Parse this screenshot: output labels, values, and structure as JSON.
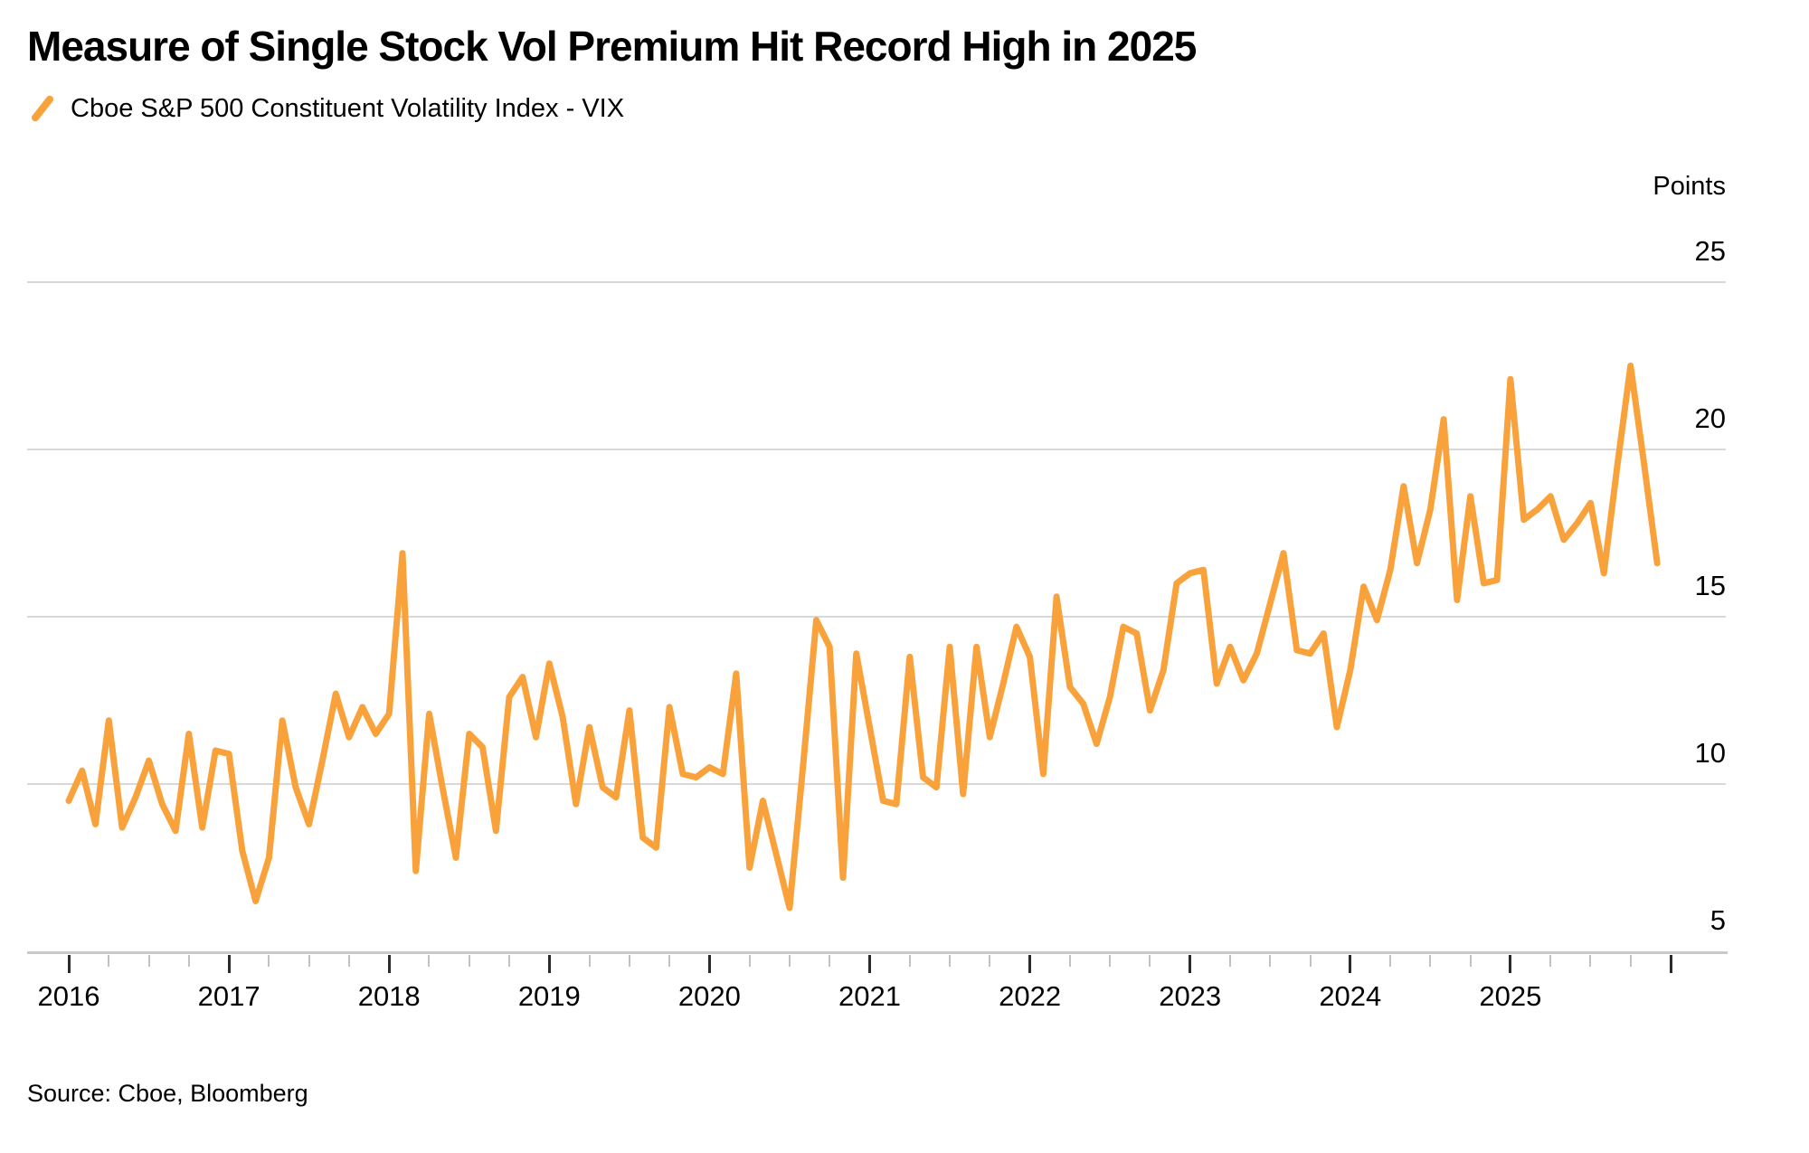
{
  "header": {
    "title": "Measure of Single Stock Vol Premium Hit Record High in 2025",
    "legend": {
      "icon": "orange-slash",
      "label": "Cboe S&P 500 Constituent Volatility Index - VIX"
    }
  },
  "axes": {
    "y_unit": "Points",
    "y_ticks": [
      25,
      20,
      15,
      10,
      5
    ],
    "x_ticks": [
      "2016",
      "2017",
      "2018",
      "2019",
      "2020",
      "2021",
      "2022",
      "2023",
      "2024",
      "2025"
    ]
  },
  "footer": {
    "source": "Source: Cboe, Bloomberg"
  },
  "colors": {
    "line": "#F9A23C",
    "grid": "#D8D8D8",
    "axis": "#C9C9C9",
    "tick_major": "#2B2B2B",
    "tick_minor": "#C2C2C2",
    "text": "#000000",
    "background": "#FFFFFF"
  },
  "chart_data": {
    "type": "line",
    "title": "Measure of Single Stock Vol Premium Hit Record High in 2025",
    "ylabel": "Points",
    "ylim": [
      5,
      25
    ],
    "grid": "horizontal",
    "legend_position": "top-left",
    "x_start": "2016-01",
    "x_end": "2025-12",
    "frequency": "monthly",
    "x_axis_years": [
      2016,
      2017,
      2018,
      2019,
      2020,
      2021,
      2022,
      2023,
      2024,
      2025
    ],
    "minor_ticks_per_year": 4,
    "series": [
      {
        "name": "Cboe S&P 500 Constituent Volatility Index - VIX",
        "color": "#F9A23C",
        "values": [
          9.5,
          10.4,
          8.8,
          11.9,
          8.7,
          9.6,
          10.7,
          9.4,
          8.6,
          11.5,
          8.7,
          11.0,
          10.9,
          8.0,
          6.5,
          7.8,
          11.9,
          9.9,
          8.8,
          10.7,
          12.7,
          11.4,
          12.3,
          11.5,
          12.1,
          16.9,
          7.4,
          12.1,
          9.9,
          7.8,
          11.5,
          11.1,
          8.6,
          12.6,
          13.2,
          11.4,
          13.6,
          12.0,
          9.4,
          11.7,
          9.9,
          9.6,
          12.2,
          8.4,
          8.1,
          12.3,
          10.3,
          10.2,
          10.5,
          10.3,
          13.3,
          7.5,
          9.5,
          7.9,
          6.3,
          10.5,
          14.9,
          14.1,
          7.2,
          13.9,
          11.7,
          9.5,
          9.4,
          13.8,
          10.2,
          9.9,
          14.1,
          9.7,
          14.1,
          11.4,
          13.0,
          14.7,
          13.8,
          10.3,
          15.6,
          12.9,
          12.4,
          11.2,
          12.6,
          14.7,
          14.5,
          12.2,
          13.4,
          16.0,
          16.3,
          16.4,
          13.0,
          14.1,
          13.1,
          13.9,
          15.4,
          16.9,
          14.0,
          13.9,
          14.5,
          11.7,
          13.4,
          15.9,
          14.9,
          16.4,
          18.9,
          16.6,
          18.2,
          20.9,
          15.5,
          18.6,
          16.0,
          16.1,
          22.1,
          17.9,
          18.2,
          18.6,
          17.3,
          17.8,
          18.4,
          16.3,
          19.5,
          22.5,
          19.6,
          16.6
        ]
      }
    ]
  }
}
